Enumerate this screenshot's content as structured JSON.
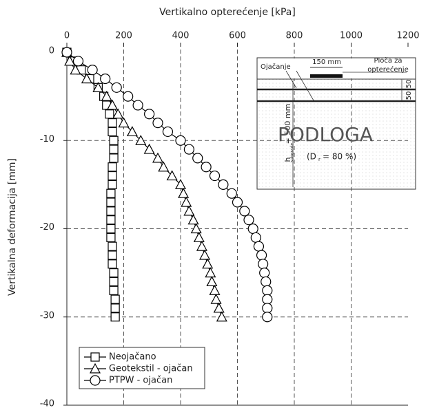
{
  "chart_data": {
    "type": "line",
    "xlabel": "Vertikalno opterećenje [kPa]",
    "ylabel": "Vertikalna deformacija [mm]",
    "xlim": [
      0,
      1200
    ],
    "xticks": [
      0,
      200,
      400,
      600,
      800,
      1000,
      1200
    ],
    "ylim": [
      -40,
      0
    ],
    "yticks": [
      0,
      -10,
      -20,
      -30,
      -40
    ],
    "grid": true,
    "legend": "lower left",
    "series": [
      {
        "name": "Neojačano",
        "marker": "square",
        "color": "#000000",
        "x": [
          0,
          20,
          50,
          80,
          110,
          130,
          140,
          150,
          160,
          160,
          165,
          165,
          165,
          160,
          160,
          160,
          155,
          155,
          155,
          155,
          155,
          155,
          160,
          160,
          160,
          165,
          165,
          165,
          170,
          170,
          170
        ],
        "values": [
          0,
          -1,
          -2,
          -3,
          -4,
          -5,
          -6,
          -7,
          -8,
          -9,
          -10,
          -11,
          -12,
          -13,
          -14,
          -15,
          -16,
          -17,
          -18,
          -19,
          -20,
          -21,
          -22,
          -23,
          -24,
          -25,
          -26,
          -27,
          -28,
          -29,
          -30
        ]
      },
      {
        "name": "Geotekstil - ojačan",
        "marker": "triangle",
        "color": "#000000",
        "x": [
          0,
          10,
          30,
          70,
          110,
          140,
          160,
          180,
          200,
          230,
          260,
          290,
          320,
          340,
          370,
          400,
          410,
          420,
          430,
          445,
          455,
          465,
          475,
          485,
          495,
          505,
          510,
          520,
          525,
          535,
          545
        ],
        "values": [
          0,
          -1,
          -2,
          -3,
          -4,
          -5,
          -6,
          -7,
          -8,
          -9,
          -10,
          -11,
          -12,
          -13,
          -14,
          -15,
          -16,
          -17,
          -18,
          -19,
          -20,
          -21,
          -22,
          -23,
          -24,
          -25,
          -26,
          -27,
          -28,
          -29,
          -30
        ]
      },
      {
        "name": "PTPW - ojačan",
        "marker": "circle",
        "color": "#000000",
        "x": [
          0,
          40,
          90,
          135,
          175,
          215,
          250,
          290,
          320,
          355,
          400,
          430,
          460,
          490,
          520,
          550,
          580,
          600,
          625,
          640,
          655,
          665,
          675,
          685,
          690,
          695,
          700,
          705,
          705,
          705,
          705
        ],
        "values": [
          0,
          -1,
          -2,
          -3,
          -4,
          -5,
          -6,
          -7,
          -8,
          -9,
          -10,
          -11,
          -12,
          -13,
          -14,
          -15,
          -16,
          -17,
          -18,
          -19,
          -20,
          -21,
          -22,
          -23,
          -24,
          -25,
          -26,
          -27,
          -28,
          -29,
          -30
        ]
      }
    ],
    "annotations": [
      "Ojačanje",
      "150 mm",
      "Ploča za",
      "opterećenje",
      "50",
      "50",
      "h",
      "subgrade",
      "= 500 mm",
      "PODLOGA",
      "(D",
      "r",
      "= 80 %)"
    ]
  }
}
